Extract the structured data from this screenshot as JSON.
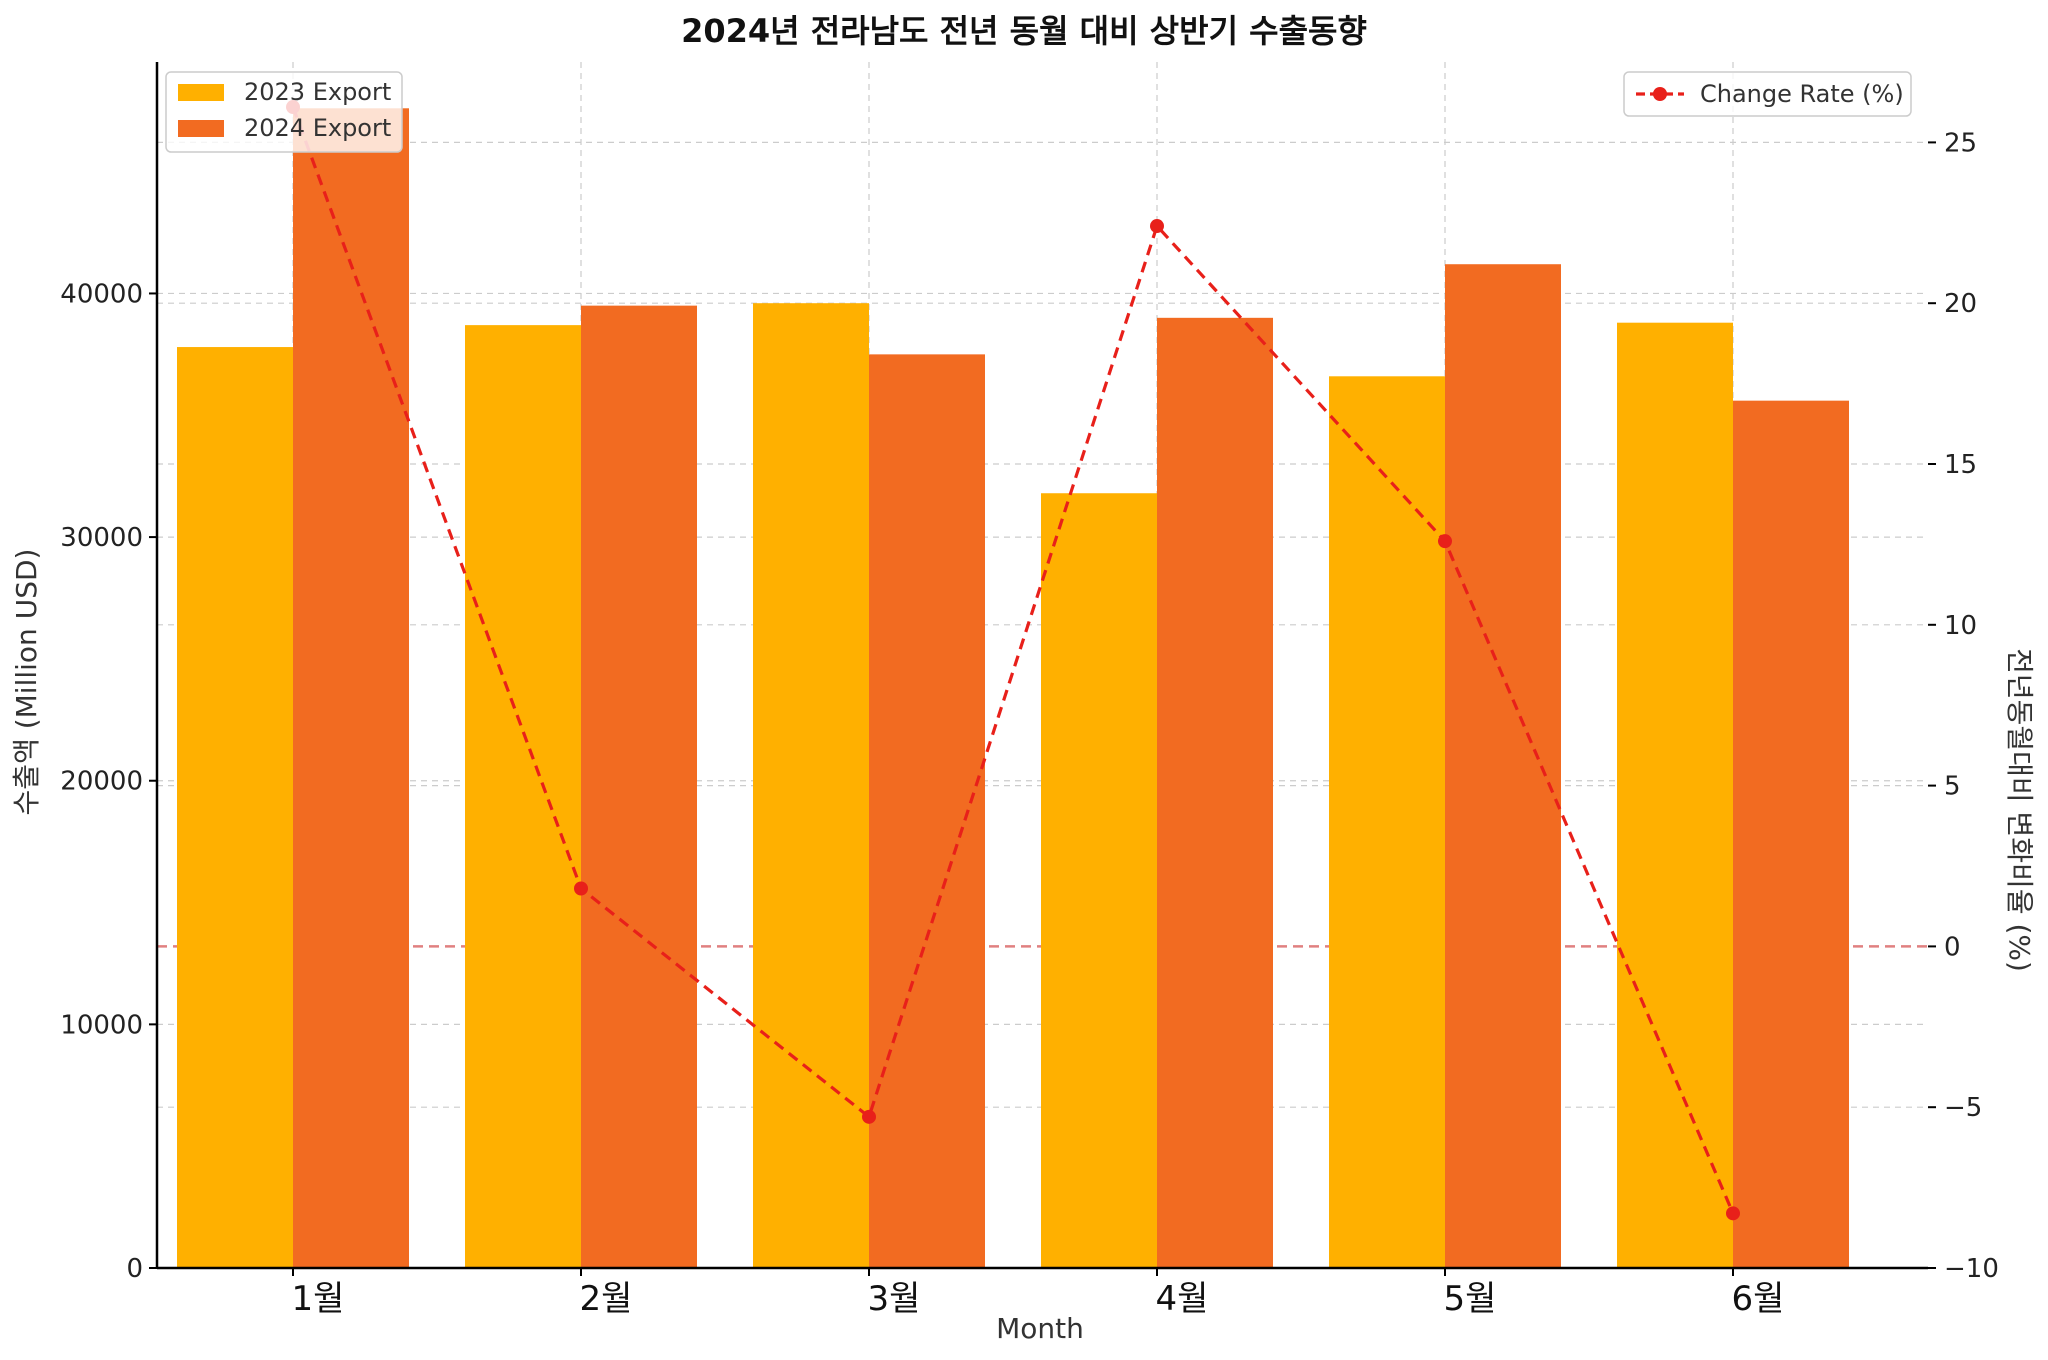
{
  "chart_data": {
    "type": "bar",
    "title": "2024년 전라남도 전년 동월 대비 상반기 수출동향",
    "categories": [
      "1월",
      "2월",
      "3월",
      "4월",
      "5월",
      "6월"
    ],
    "series": [
      {
        "name": "2023 Export",
        "values": [
          37800,
          38700,
          39600,
          31800,
          36600,
          38800
        ],
        "color": "#FFB000",
        "axis": "left",
        "kind": "bar"
      },
      {
        "name": "2024 Export",
        "values": [
          47600,
          39500,
          37500,
          39000,
          41200,
          35600
        ],
        "color": "#F26B21",
        "axis": "left",
        "kind": "bar"
      },
      {
        "name": "Change Rate (%)",
        "values": [
          26.1,
          1.8,
          -5.3,
          22.4,
          12.6,
          -8.3
        ],
        "color": "#E8201A",
        "axis": "right",
        "kind": "line"
      }
    ],
    "xlabel": "Month",
    "ylabel": "수출액 (Million USD)",
    "ylabel_right": "전년동월대비 변화비율 (%)",
    "ylim": [
      0,
      49500
    ],
    "ylim_right": [
      -10,
      27.5
    ],
    "yticks": [
      0,
      10000,
      20000,
      30000,
      40000
    ],
    "yticks_right": [
      -10,
      -5,
      0,
      5,
      10,
      15,
      20,
      25
    ],
    "grid": true,
    "legend_left_placement": "upper-left",
    "legend_right_placement": "upper-right",
    "reference_line_right": 0,
    "reference_line_color": "#E08080",
    "grid_color": "#CCCCCC"
  }
}
